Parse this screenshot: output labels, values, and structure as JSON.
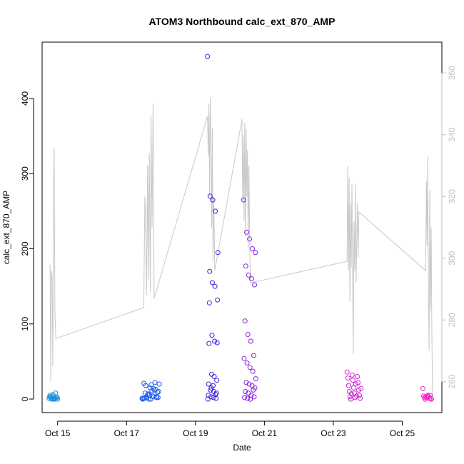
{
  "chart_data": {
    "type": "scatter",
    "title": "ATOM3 Northbound calc_ext_870_AMP",
    "xlabel": "Date",
    "ylabel": "calc_ext_870_AMP",
    "xlim": [
      14.55,
      26.15
    ],
    "ylim": [
      -18,
      475
    ],
    "y2lim": [
      250,
      370
    ],
    "x_ticks": [
      15,
      17,
      19,
      21,
      23,
      25
    ],
    "x_tick_labels": [
      "Oct 15",
      "Oct 17",
      "Oct 19",
      "Oct 21",
      "Oct 23",
      "Oct 25"
    ],
    "y_ticks": [
      0,
      100,
      200,
      300,
      400
    ],
    "y_tick_labels": [
      "0",
      "100",
      "200",
      "300",
      "400"
    ],
    "y2_ticks": [
      260,
      280,
      300,
      320,
      340,
      360
    ],
    "y2_tick_labels": [
      "260",
      "280",
      "300",
      "320",
      "340",
      "360"
    ],
    "grid": false,
    "colors": {
      "frame": "#000000",
      "line": "#c8c8c8",
      "right_axis": "#c0c0c0"
    },
    "series": [
      {
        "name": "calc_ext_870_AMP",
        "marker": "open-circle",
        "groups": [
          {
            "color": "#1e90e0",
            "x_start": 14.75,
            "x_end": 15.0,
            "values": [
              1,
              0,
              2,
              3,
              1,
              0,
              4,
              8,
              5,
              1,
              2,
              0,
              1,
              3,
              6,
              2,
              1,
              0
            ]
          },
          {
            "color": "#1e5be8",
            "x_start": 17.45,
            "x_end": 17.95,
            "values": [
              1,
              2,
              0,
              22,
              20,
              18,
              15,
              12,
              10,
              8,
              5,
              3,
              2,
              1,
              0,
              14,
              9,
              21,
              7,
              4,
              2,
              1,
              6,
              11,
              3,
              0,
              2,
              19,
              13
            ]
          },
          {
            "color": "#3a20e0",
            "x_start": 19.35,
            "x_end": 19.65,
            "values": [
              456,
              270,
              265,
              250,
              195,
              170,
              155,
              150,
              132,
              128,
              85,
              77,
              75,
              74,
              33,
              30,
              25,
              20,
              15,
              10,
              8,
              5,
              3,
              2,
              1,
              0,
              12,
              18,
              6
            ]
          },
          {
            "color": "#8c20e6",
            "x_start": 20.4,
            "x_end": 20.75,
            "values": [
              265,
              222,
              213,
              200,
              195,
              177,
              165,
              160,
              152,
              104,
              86,
              77,
              58,
              54,
              48,
              42,
              37,
              27,
              22,
              20,
              18,
              15,
              10,
              8,
              5,
              3,
              2,
              1,
              0,
              12
            ]
          },
          {
            "color": "#d020d8",
            "x_start": 23.4,
            "x_end": 23.8,
            "values": [
              36,
              32,
              30,
              28,
              25,
              22,
              18,
              15,
              12,
              10,
              8,
              5,
              3,
              2,
              1,
              0,
              20,
              14,
              7,
              4
            ]
          },
          {
            "color": "#f020c8",
            "x_start": 25.6,
            "x_end": 25.85,
            "values": [
              14,
              5,
              4,
              3,
              2,
              1,
              0,
              5,
              3,
              1,
              2,
              0,
              4
            ]
          }
        ]
      },
      {
        "name": "secondary line (right axis)",
        "axis": "right",
        "points": [
          [
            14.78,
            298
          ],
          [
            14.8,
            260
          ],
          [
            14.82,
            296
          ],
          [
            14.84,
            294
          ],
          [
            14.86,
            265
          ],
          [
            14.88,
            322
          ],
          [
            14.9,
            336
          ],
          [
            14.92,
            283
          ],
          [
            14.95,
            274
          ],
          [
            17.5,
            284
          ],
          [
            17.53,
            320
          ],
          [
            17.55,
            316
          ],
          [
            17.58,
            288
          ],
          [
            17.61,
            330
          ],
          [
            17.63,
            293
          ],
          [
            17.66,
            334
          ],
          [
            17.69,
            289
          ],
          [
            17.71,
            346
          ],
          [
            17.74,
            310
          ],
          [
            17.77,
            350
          ],
          [
            17.8,
            287
          ],
          [
            19.35,
            346
          ],
          [
            19.37,
            333
          ],
          [
            19.39,
            350
          ],
          [
            19.41,
            320
          ],
          [
            19.43,
            352
          ],
          [
            19.45,
            340
          ],
          [
            19.47,
            310
          ],
          [
            19.49,
            342
          ],
          [
            19.51,
            299
          ],
          [
            19.53,
            320
          ],
          [
            19.56,
            296
          ],
          [
            20.35,
            345
          ],
          [
            20.37,
            319
          ],
          [
            20.39,
            340
          ],
          [
            20.41,
            312
          ],
          [
            20.43,
            344
          ],
          [
            20.45,
            307
          ],
          [
            20.47,
            342
          ],
          [
            20.49,
            320
          ],
          [
            20.51,
            335
          ],
          [
            20.53,
            303
          ],
          [
            20.55,
            330
          ],
          [
            20.57,
            310
          ],
          [
            20.59,
            292
          ],
          [
            23.4,
            299
          ],
          [
            23.42,
            330
          ],
          [
            23.44,
            296
          ],
          [
            23.46,
            326
          ],
          [
            23.48,
            286
          ],
          [
            23.5,
            318
          ],
          [
            23.52,
            297
          ],
          [
            23.54,
            324
          ],
          [
            23.56,
            292
          ],
          [
            23.58,
            269
          ],
          [
            23.6,
            312
          ],
          [
            23.62,
            296
          ],
          [
            23.64,
            324
          ],
          [
            23.66,
            292
          ],
          [
            23.68,
            305
          ],
          [
            23.7,
            318
          ],
          [
            23.72,
            300
          ],
          [
            23.74,
            315
          ],
          [
            25.68,
            296
          ],
          [
            25.7,
            325
          ],
          [
            25.72,
            304
          ],
          [
            25.74,
            333
          ],
          [
            25.76,
            290
          ],
          [
            25.78,
            270
          ],
          [
            25.8,
            322
          ],
          [
            25.82,
            283
          ],
          [
            25.84,
            310
          ],
          [
            25.86,
            275
          ],
          [
            25.88,
            254
          ]
        ]
      }
    ]
  }
}
